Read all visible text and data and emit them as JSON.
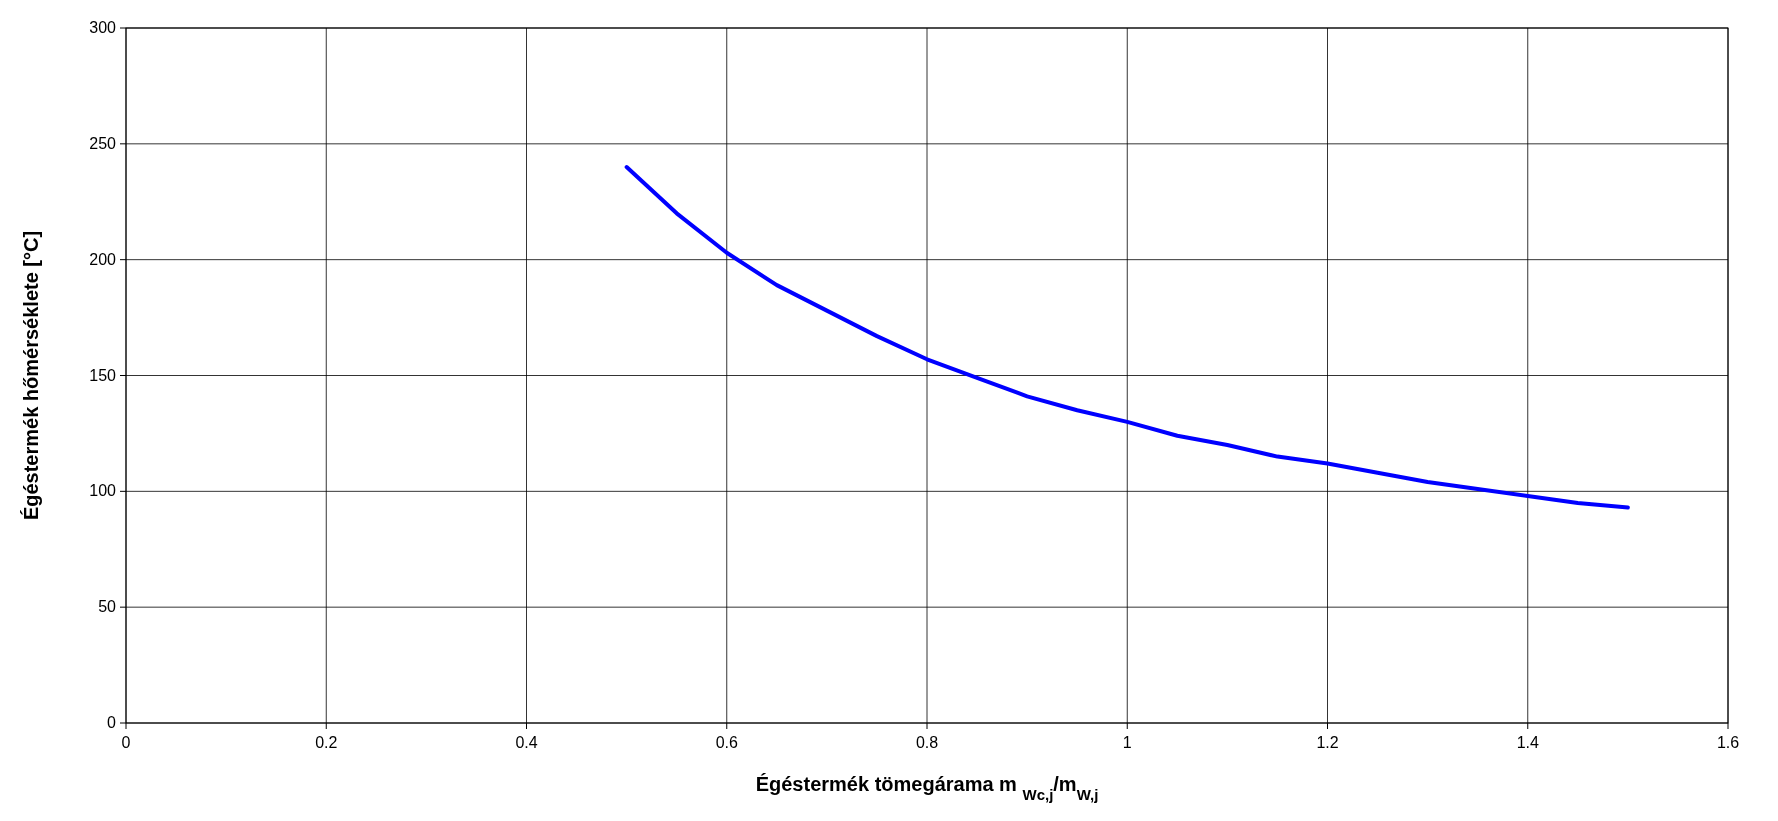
{
  "chart_data": {
    "type": "line",
    "xlabel": "Égéstermék tömegárama m $_{Wc,j}$/m$_{W,j}$",
    "ylabel": "Égéstermék hőmérséklete [°C]",
    "x": [
      0.5,
      0.55,
      0.6,
      0.65,
      0.7,
      0.75,
      0.8,
      0.85,
      0.9,
      0.95,
      1.0,
      1.05,
      1.1,
      1.15,
      1.2,
      1.25,
      1.3,
      1.35,
      1.4,
      1.45,
      1.5
    ],
    "series": [
      {
        "color": "#0000ff",
        "values": [
          240,
          220,
          203,
          189,
          178,
          167,
          157,
          149,
          141,
          135,
          130,
          124,
          120,
          115,
          112,
          108,
          104,
          101,
          98,
          95,
          93
        ]
      }
    ],
    "xlim": [
      0,
      1.6
    ],
    "xticks": [
      0,
      0.2,
      0.4,
      0.6,
      0.8,
      1,
      1.2,
      1.4,
      1.6
    ],
    "ylim": [
      0,
      300
    ],
    "yticks": [
      0,
      50,
      100,
      150,
      200,
      250,
      300
    ],
    "grid": true,
    "marker": "none",
    "line_style": "solid"
  }
}
